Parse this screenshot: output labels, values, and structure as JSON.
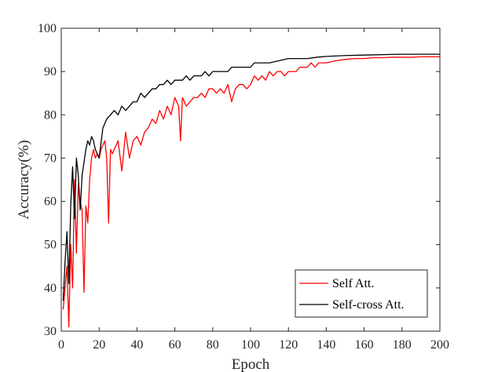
{
  "chart_data": {
    "type": "line",
    "title": "",
    "xlabel": "Epoch",
    "ylabel": "Accuracy(%)",
    "xlim": [
      0,
      200
    ],
    "ylim": [
      30,
      100
    ],
    "xticks": [
      0,
      20,
      40,
      60,
      80,
      100,
      120,
      140,
      160,
      180,
      200
    ],
    "yticks": [
      30,
      40,
      50,
      60,
      70,
      80,
      90,
      100
    ],
    "xtick_labels": [
      "0",
      "20",
      "40",
      "60",
      "80",
      "100",
      "120",
      "140",
      "160",
      "180",
      "200"
    ],
    "ytick_labels": [
      "30",
      "40",
      "50",
      "60",
      "70",
      "80",
      "90",
      "100"
    ],
    "grid": false,
    "box": true,
    "legend_position": "bottom-right",
    "series": [
      {
        "name": "Self Att.",
        "color": "#ff0000",
        "x": [
          1,
          2,
          3,
          4,
          5,
          6,
          7,
          8,
          9,
          10,
          11,
          12,
          13,
          14,
          15,
          16,
          17,
          18,
          19,
          20,
          21,
          22,
          23,
          24,
          25,
          26,
          27,
          28,
          29,
          30,
          32,
          34,
          36,
          38,
          40,
          42,
          44,
          46,
          48,
          50,
          52,
          54,
          56,
          58,
          60,
          62,
          63,
          64,
          66,
          68,
          70,
          72,
          74,
          76,
          78,
          80,
          82,
          84,
          86,
          88,
          90,
          92,
          94,
          96,
          98,
          100,
          102,
          104,
          106,
          108,
          110,
          112,
          114,
          116,
          118,
          120,
          122,
          124,
          126,
          128,
          130,
          132,
          134,
          136,
          138,
          140,
          145,
          150,
          155,
          160,
          165,
          170,
          175,
          180,
          185,
          190,
          195,
          200
        ],
        "y": [
          35,
          40,
          45,
          31,
          50,
          40,
          65,
          48,
          64,
          60,
          58,
          39,
          59,
          55,
          65,
          70,
          72,
          70,
          71,
          70,
          72,
          73,
          74,
          70,
          55,
          72,
          71,
          72,
          73,
          74,
          67,
          76,
          70,
          74,
          75,
          73,
          76,
          77,
          79,
          78,
          81,
          79,
          82,
          80,
          84,
          82,
          74,
          84,
          82,
          83,
          84,
          84,
          85,
          84,
          86,
          86,
          85,
          86,
          85,
          87,
          83,
          86,
          87,
          87,
          86,
          87,
          89,
          88,
          89,
          88,
          90,
          89,
          90,
          90,
          89,
          90,
          90,
          90,
          91,
          91,
          91,
          92,
          91,
          92,
          92,
          92,
          92.5,
          92.8,
          93,
          93,
          93.2,
          93.2,
          93.3,
          93.3,
          93.3,
          93.4,
          93.4,
          93.4
        ]
      },
      {
        "name": "Self-cross Att.",
        "color": "#000000",
        "x": [
          1,
          2,
          3,
          4,
          5,
          6,
          7,
          8,
          9,
          10,
          11,
          12,
          13,
          14,
          15,
          16,
          17,
          18,
          19,
          20,
          22,
          24,
          26,
          28,
          30,
          32,
          34,
          36,
          38,
          40,
          42,
          44,
          46,
          48,
          50,
          52,
          54,
          56,
          58,
          60,
          62,
          64,
          66,
          68,
          70,
          72,
          74,
          76,
          78,
          80,
          82,
          84,
          86,
          88,
          90,
          92,
          94,
          96,
          98,
          100,
          102,
          104,
          106,
          108,
          110,
          115,
          120,
          125,
          130,
          135,
          140,
          150,
          160,
          170,
          180,
          190,
          200
        ],
        "y": [
          37,
          46,
          53,
          41,
          59,
          68,
          56,
          70,
          66,
          58,
          66,
          69,
          72,
          74,
          73,
          75,
          74,
          72,
          71,
          70,
          77,
          79,
          80,
          81,
          80,
          82,
          81,
          82,
          83,
          83,
          85,
          84,
          85,
          86,
          86,
          87,
          87,
          88,
          87,
          88,
          88,
          88,
          89,
          88,
          89,
          89,
          89,
          90,
          89,
          90,
          90,
          90,
          90,
          90,
          91,
          91,
          91,
          91,
          91,
          91,
          92,
          92,
          92,
          92,
          92,
          92.5,
          93,
          93,
          93,
          93.3,
          93.5,
          93.7,
          93.8,
          93.9,
          94,
          94,
          94
        ]
      }
    ]
  }
}
